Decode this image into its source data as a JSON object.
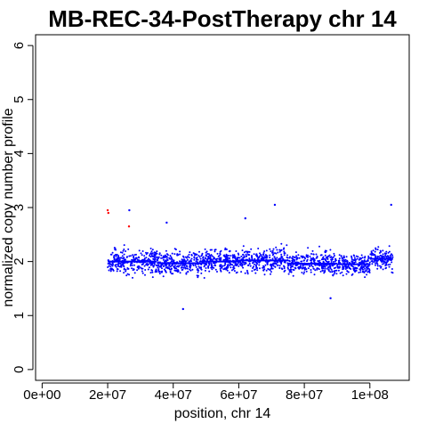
{
  "chart_data": {
    "type": "scatter",
    "title": "MB-REC-34-PostTherapy chr 14",
    "xlabel": "position, chr 14",
    "ylabel": "normalized copy number profile",
    "xlim": [
      -2000000,
      112000000
    ],
    "ylim": [
      -0.2,
      6.2
    ],
    "x_ticks": [
      {
        "value": 0,
        "label": "0e+00"
      },
      {
        "value": 20000000,
        "label": "2e+07"
      },
      {
        "value": 40000000,
        "label": "4e+07"
      },
      {
        "value": 60000000,
        "label": "6e+07"
      },
      {
        "value": 80000000,
        "label": "8e+07"
      },
      {
        "value": 100000000,
        "label": "1e+08"
      }
    ],
    "y_ticks": [
      {
        "value": 0,
        "label": "0"
      },
      {
        "value": 1,
        "label": "1"
      },
      {
        "value": 2,
        "label": "2"
      },
      {
        "value": 3,
        "label": "3"
      },
      {
        "value": 4,
        "label": "4"
      },
      {
        "value": 5,
        "label": "5"
      },
      {
        "value": 6,
        "label": "6"
      }
    ],
    "data_range": [
      20000000,
      107000000
    ],
    "baseline": 2.0,
    "segments": [
      {
        "x0": 20000000,
        "x1": 35000000,
        "y": 2.0
      },
      {
        "x0": 35000000,
        "x1": 50000000,
        "y": 1.97
      },
      {
        "x0": 50000000,
        "x1": 60000000,
        "y": 2.0
      },
      {
        "x0": 60000000,
        "x1": 75000000,
        "y": 2.02
      },
      {
        "x0": 75000000,
        "x1": 90000000,
        "y": 1.96
      },
      {
        "x0": 90000000,
        "x1": 100000000,
        "y": 1.95
      },
      {
        "x0": 100000000,
        "x1": 107000000,
        "y": 2.05
      }
    ],
    "outliers": [
      {
        "x": 20000000,
        "y": 2.95,
        "color": "#ff0000"
      },
      {
        "x": 20200000,
        "y": 2.9,
        "color": "#ff0000"
      },
      {
        "x": 26500000,
        "y": 2.65,
        "color": "#ff0000"
      },
      {
        "x": 26600000,
        "y": 2.95,
        "color": "#0000ff"
      },
      {
        "x": 38000000,
        "y": 2.72,
        "color": "#0000ff"
      },
      {
        "x": 43000000,
        "y": 1.12,
        "color": "#0000ff"
      },
      {
        "x": 62000000,
        "y": 2.8,
        "color": "#0000ff"
      },
      {
        "x": 71000000,
        "y": 3.05,
        "color": "#0000ff"
      },
      {
        "x": 106500000,
        "y": 3.05,
        "color": "#0000ff"
      },
      {
        "x": 88000000,
        "y": 1.32,
        "color": "#0000ff"
      }
    ],
    "colors": {
      "point": "#0000ff",
      "outlier": "#ff0000",
      "segment": "#0000ff",
      "axis": "#000000"
    }
  }
}
